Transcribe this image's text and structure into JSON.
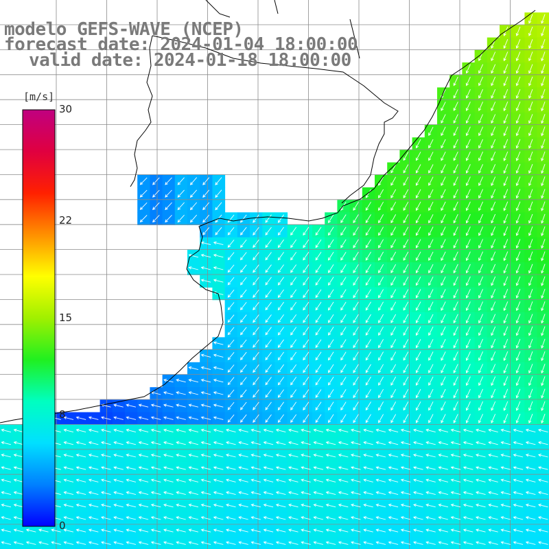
{
  "title": {
    "line1": "modelo GEFS-WAVE (NCEP)",
    "line2": "forecast date: 2024-01-04 18:00:00",
    "line3": "valid date: 2024-01-18 18:00:00"
  },
  "colorbar": {
    "unit": "[m/s]",
    "ticks": [
      "30",
      "22",
      "15",
      "8",
      "0"
    ],
    "tick_values": [
      30,
      22,
      15,
      8,
      0
    ],
    "min": 0,
    "max": 30,
    "colors": [
      "#0000ff",
      "#0080ff",
      "#00e0ff",
      "#00ffc0",
      "#20f020",
      "#a0f000",
      "#ffff00",
      "#ff9000",
      "#ff2000",
      "#e00040",
      "#c00080"
    ]
  },
  "map": {
    "field": "wind speed",
    "arrow_color": "#ffffff",
    "coast_color": "#000000",
    "grid_color": "#8a8a8a"
  }
}
